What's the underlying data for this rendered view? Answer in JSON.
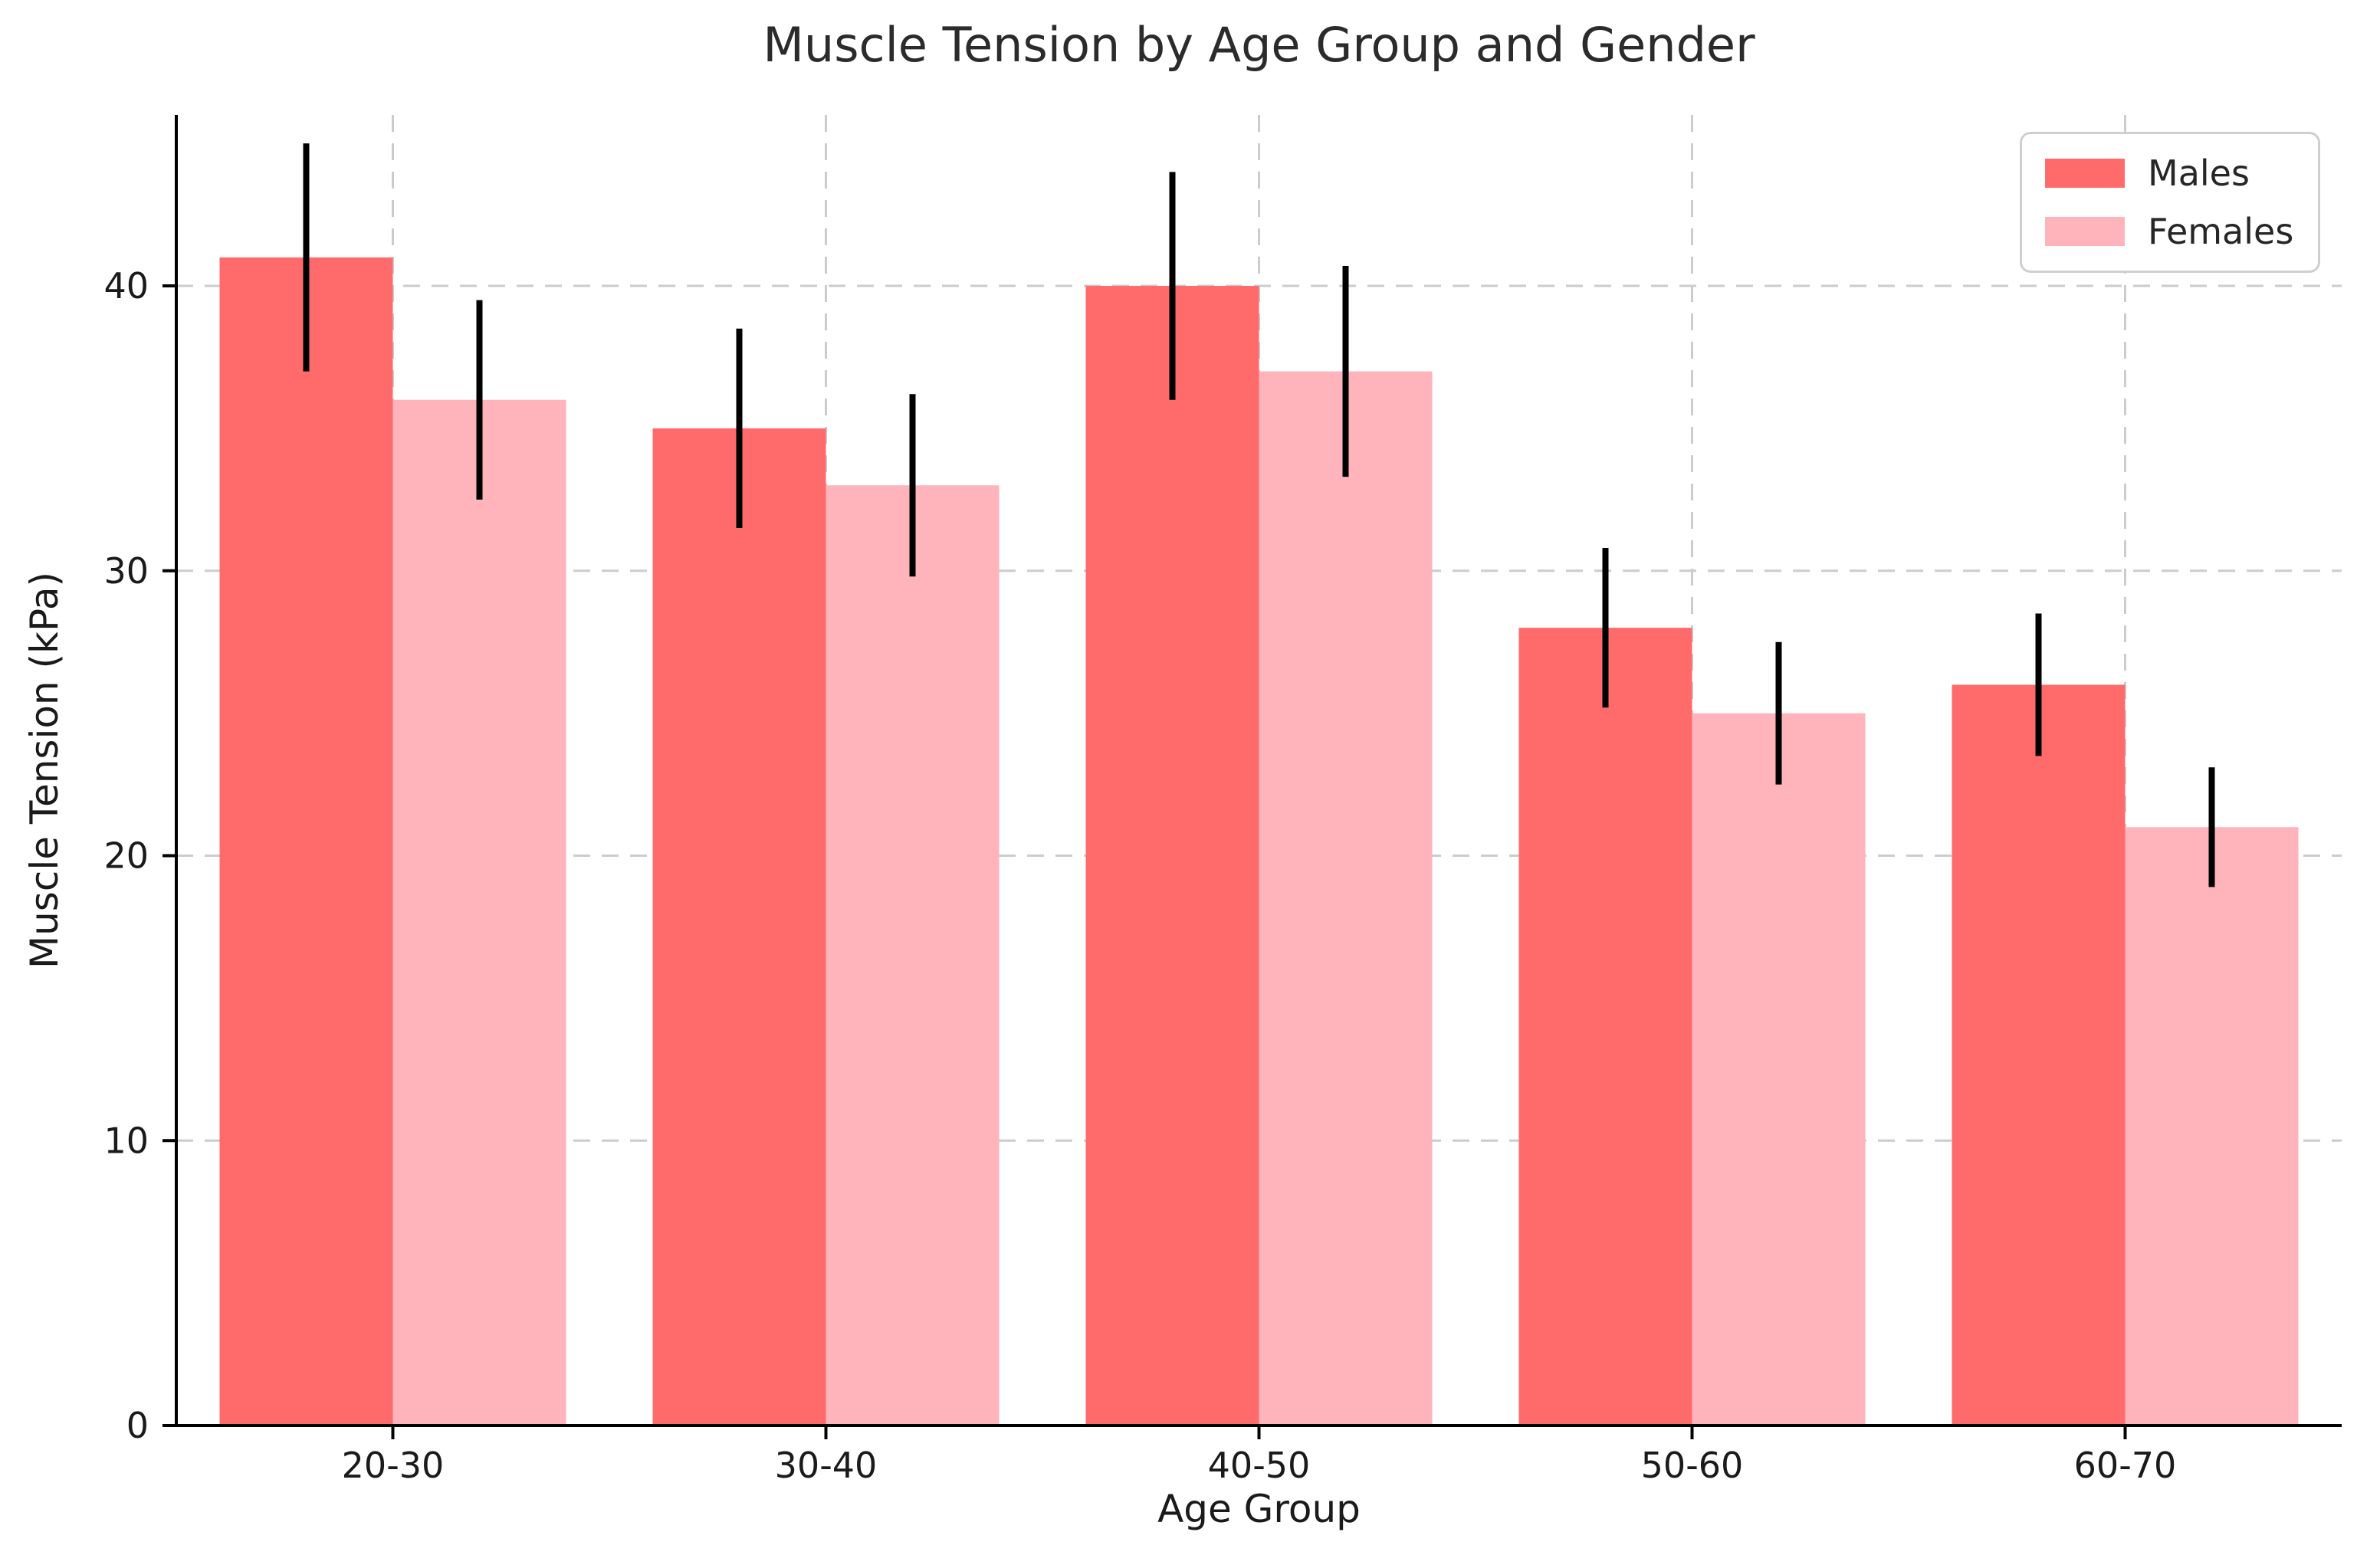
{
  "chart_data": {
    "type": "bar",
    "title": "Muscle Tension by Age Group and Gender",
    "xlabel": "Age Group",
    "ylabel": "Muscle Tension (kPa)",
    "categories": [
      "20-30",
      "30-40",
      "40-50",
      "50-60",
      "60-70"
    ],
    "series": [
      {
        "name": "Males",
        "color": "#FF6B6B",
        "values": [
          41,
          35,
          40,
          28,
          26
        ],
        "errors": [
          4.0,
          3.5,
          4.0,
          2.8,
          2.5
        ]
      },
      {
        "name": "Females",
        "color": "#FFB3BA",
        "values": [
          36,
          33,
          37,
          25,
          21
        ],
        "errors": [
          3.5,
          3.2,
          3.7,
          2.5,
          2.1
        ]
      }
    ],
    "ylim": [
      0,
      46
    ],
    "yticks": [
      0,
      10,
      20,
      30,
      40
    ],
    "grid": {
      "shown": true,
      "style": "dashed",
      "color": "#cccccc",
      "axes": "both"
    },
    "error_bar_color": "#000000",
    "axis_color": "#000000",
    "legend": {
      "position": "upper right",
      "entries": [
        "Males",
        "Females"
      ]
    }
  }
}
